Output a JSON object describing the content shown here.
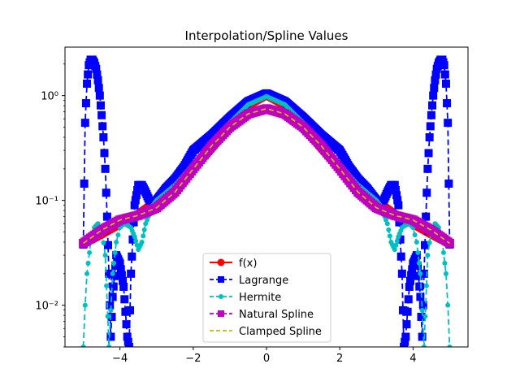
{
  "chart_data": {
    "type": "line",
    "title": "Interpolation/Spline Values",
    "xlabel": "",
    "ylabel": "",
    "xlim": [
      -5.5,
      5.5
    ],
    "ylim": [
      0.004,
      2.9
    ],
    "yscale": "log",
    "grid": false,
    "legend_position": "lower-center",
    "x_ticks": [
      -4,
      -2,
      0,
      2,
      4
    ],
    "x_tick_labels": [
      "−4",
      "−2",
      "0",
      "2",
      "4"
    ],
    "y_ticks": [
      0.01,
      0.1,
      1
    ],
    "y_tick_labels": [
      "10⁻²",
      "10⁻¹",
      "10⁰"
    ],
    "series": [
      {
        "name": "f(x)",
        "color": "#ff0000",
        "line_style": "solid",
        "marker": "circle",
        "x": [
          -5,
          -4.5,
          -4,
          -3.5,
          -3,
          -2.5,
          -2,
          -1.5,
          -1,
          -0.5,
          0,
          0.5,
          1,
          1.5,
          2,
          2.5,
          3,
          3.5,
          4,
          4.5,
          5
        ],
        "y": [
          0.038,
          0.047,
          0.059,
          0.075,
          0.1,
          0.138,
          0.2,
          0.308,
          0.5,
          0.8,
          1.0,
          0.8,
          0.5,
          0.308,
          0.2,
          0.138,
          0.1,
          0.075,
          0.059,
          0.047,
          0.038
        ]
      },
      {
        "name": "Lagrange",
        "color": "#0000ff",
        "line_style": "dashed",
        "marker": "square",
        "x": [
          -5,
          -4.95,
          -4.9,
          -4.85,
          -4.8,
          -4.75,
          -4.7,
          -4.65,
          -4.6,
          -4.55,
          -4.5,
          -4.45,
          -4.4,
          -4.35,
          -4.3,
          -4.25,
          -4.2,
          -4.1,
          -4.0,
          -3.9,
          -3.8,
          -3.75,
          -3.7,
          -3.6,
          -3.5,
          -3.4,
          -3.3,
          -3.2,
          -3.0,
          -2.75,
          -2.5,
          -2.25,
          -2.0,
          -1.5,
          -1.0,
          -0.5,
          0,
          0.5,
          1.0,
          1.5,
          2.0,
          2.25,
          2.5,
          2.75,
          3.0,
          3.2,
          3.3,
          3.4,
          3.5,
          3.6,
          3.7,
          3.75,
          3.8,
          3.9,
          4.0,
          4.1,
          4.2,
          4.25,
          4.3,
          4.35,
          4.4,
          4.45,
          4.5,
          4.55,
          4.6,
          4.65,
          4.7,
          4.75,
          4.8,
          4.85,
          4.9,
          4.95,
          5
        ],
        "y": [
          0.038,
          0.55,
          1.3,
          1.95,
          2.2,
          2.2,
          2.05,
          1.8,
          1.4,
          1.0,
          0.65,
          0.4,
          0.2,
          0.07,
          0.02,
          0.005,
          0.012,
          0.03,
          0.025,
          0.015,
          0.005,
          0.004,
          0.02,
          0.09,
          0.14,
          0.14,
          0.12,
          0.1,
          0.1,
          0.13,
          0.16,
          0.21,
          0.3,
          0.42,
          0.62,
          0.88,
          1.05,
          0.88,
          0.62,
          0.42,
          0.3,
          0.21,
          0.16,
          0.13,
          0.1,
          0.1,
          0.12,
          0.14,
          0.14,
          0.09,
          0.02,
          0.004,
          0.005,
          0.015,
          0.025,
          0.03,
          0.012,
          0.005,
          0.02,
          0.07,
          0.2,
          0.4,
          0.65,
          1.0,
          1.4,
          1.8,
          2.05,
          2.2,
          2.2,
          1.95,
          1.3,
          0.55,
          0.038
        ]
      },
      {
        "name": "Hermite",
        "color": "#00bfbf",
        "line_style": "dashed",
        "marker": "circle-small",
        "x": [
          -5,
          -4.95,
          -4.9,
          -4.8,
          -4.7,
          -4.6,
          -4.5,
          -4.4,
          -4.3,
          -4.2,
          -4.1,
          -4.0,
          -3.9,
          -3.8,
          -3.7,
          -3.6,
          -3.5,
          -3.4,
          -3.3,
          -3.1,
          -3.0,
          -2.5,
          -2.0,
          -1.5,
          -1.0,
          -0.5,
          0,
          0.5,
          1.0,
          1.5,
          2.0,
          2.5,
          3.0,
          3.1,
          3.3,
          3.4,
          3.5,
          3.6,
          3.7,
          3.8,
          3.9,
          4.0,
          4.1,
          4.2,
          4.3,
          4.4,
          4.5,
          4.6,
          4.7,
          4.8,
          4.9,
          4.95,
          5
        ],
        "y": [
          0.004,
          0.01,
          0.02,
          0.04,
          0.055,
          0.06,
          0.052,
          0.03,
          0.004,
          0.02,
          0.04,
          0.055,
          0.06,
          0.058,
          0.055,
          0.045,
          0.034,
          0.04,
          0.06,
          0.09,
          0.1,
          0.14,
          0.22,
          0.35,
          0.55,
          0.82,
          0.98,
          0.82,
          0.55,
          0.35,
          0.22,
          0.14,
          0.1,
          0.09,
          0.06,
          0.04,
          0.034,
          0.045,
          0.055,
          0.058,
          0.06,
          0.055,
          0.04,
          0.02,
          0.004,
          0.03,
          0.052,
          0.06,
          0.055,
          0.04,
          0.02,
          0.01,
          0.004
        ]
      },
      {
        "name": "Natural Spline",
        "color": "#bf00bf",
        "line_style": "dashed",
        "marker": "square",
        "x": [
          -5,
          -4.5,
          -4,
          -3.5,
          -3,
          -2.5,
          -2,
          -1.5,
          -1,
          -0.5,
          0,
          0.5,
          1,
          1.5,
          2,
          2.5,
          3,
          3.5,
          4,
          4.5,
          5
        ],
        "y": [
          0.039,
          0.052,
          0.065,
          0.072,
          0.085,
          0.12,
          0.2,
          0.33,
          0.5,
          0.67,
          0.75,
          0.67,
          0.5,
          0.33,
          0.2,
          0.12,
          0.085,
          0.072,
          0.065,
          0.052,
          0.039
        ]
      },
      {
        "name": "Clamped Spline",
        "color": "#bfbf00",
        "line_style": "dashed",
        "marker": "none",
        "x": [
          -5,
          -4.5,
          -4,
          -3.5,
          -3,
          -2.5,
          -2,
          -1.5,
          -1,
          -0.5,
          0,
          0.5,
          1,
          1.5,
          2,
          2.5,
          3,
          3.5,
          4,
          4.5,
          5
        ],
        "y": [
          0.039,
          0.052,
          0.065,
          0.072,
          0.085,
          0.12,
          0.2,
          0.33,
          0.5,
          0.67,
          0.75,
          0.67,
          0.5,
          0.33,
          0.2,
          0.12,
          0.085,
          0.072,
          0.065,
          0.052,
          0.039
        ]
      }
    ]
  }
}
